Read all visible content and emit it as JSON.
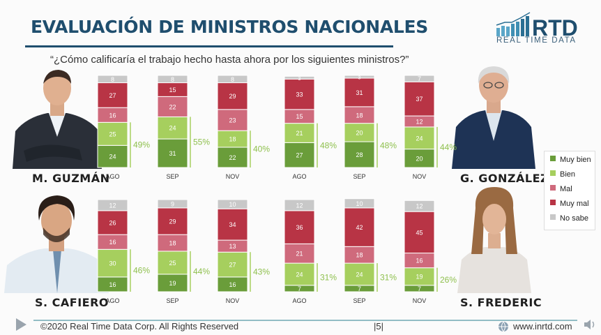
{
  "header": {
    "title": "EVALUACIÓN DE MINISTROS NACIONALES",
    "question": "“¿Cómo calificaría el trabajo hecho hasta ahora por los siguientes ministros?”",
    "logo_mark": "RTD",
    "logo_text": "REAL TIME DATA"
  },
  "ministers": [
    {
      "name": "M. GUZMÁN"
    },
    {
      "name": "G. GONZÁLEZ"
    },
    {
      "name": "S. CAFIERO"
    },
    {
      "name": "S. FREDERIC"
    }
  ],
  "legend": [
    {
      "label": "Muy bien",
      "color": "#6a9d3a"
    },
    {
      "label": "Bien",
      "color": "#a6cf5e"
    },
    {
      "label": "Mal",
      "color": "#cf6a7c"
    },
    {
      "label": "Muy mal",
      "color": "#b83445"
    },
    {
      "label": "No sabe",
      "color": "#c8c8c8"
    }
  ],
  "footer": {
    "copyright": "©2020 Real Time Data Corp. All Rights Reserved",
    "page": "|5|",
    "url": "www.inrtd.com"
  },
  "chart_data": [
    {
      "type": "bar",
      "title": "M. GUZMÁN",
      "categories": [
        "AGO",
        "SEP",
        "NOV"
      ],
      "series": [
        {
          "name": "Muy bien",
          "values": [
            24,
            31,
            22
          ]
        },
        {
          "name": "Bien",
          "values": [
            25,
            24,
            18
          ]
        },
        {
          "name": "Mal",
          "values": [
            16,
            22,
            23
          ]
        },
        {
          "name": "Muy mal",
          "values": [
            27,
            15,
            29
          ]
        },
        {
          "name": "No sabe",
          "values": [
            8,
            8,
            8
          ]
        }
      ],
      "positive_totals": [
        "49%",
        "55%",
        "40%"
      ]
    },
    {
      "type": "bar",
      "title": "G. GONZÁLEZ",
      "categories": [
        "AGO",
        "SEP",
        "NOV"
      ],
      "series": [
        {
          "name": "Muy bien",
          "values": [
            27,
            28,
            20
          ]
        },
        {
          "name": "Bien",
          "values": [
            21,
            20,
            24
          ]
        },
        {
          "name": "Mal",
          "values": [
            15,
            18,
            12
          ]
        },
        {
          "name": "Muy mal",
          "values": [
            33,
            31,
            37
          ]
        },
        {
          "name": "No sabe",
          "values": [
            3,
            3,
            7
          ]
        }
      ],
      "positive_totals": [
        "48%",
        "48%",
        "44%"
      ]
    },
    {
      "type": "bar",
      "title": "S. CAFIERO",
      "categories": [
        "AGO",
        "SEP",
        "NOV"
      ],
      "series": [
        {
          "name": "Muy bien",
          "values": [
            16,
            19,
            16
          ]
        },
        {
          "name": "Bien",
          "values": [
            30,
            25,
            27
          ]
        },
        {
          "name": "Mal",
          "values": [
            16,
            18,
            13
          ]
        },
        {
          "name": "Muy mal",
          "values": [
            26,
            29,
            34
          ]
        },
        {
          "name": "No sabe",
          "values": [
            12,
            9,
            10
          ]
        }
      ],
      "positive_totals": [
        "46%",
        "44%",
        "43%"
      ]
    },
    {
      "type": "bar",
      "title": "S. FREDERIC",
      "categories": [
        "AGO",
        "SEP",
        "NOV"
      ],
      "series": [
        {
          "name": "Muy bien",
          "values": [
            7,
            7,
            7
          ]
        },
        {
          "name": "Bien",
          "values": [
            24,
            24,
            19
          ]
        },
        {
          "name": "Mal",
          "values": [
            21,
            18,
            16
          ]
        },
        {
          "name": "Muy mal",
          "values": [
            36,
            42,
            45
          ]
        },
        {
          "name": "No sabe",
          "values": [
            12,
            10,
            12
          ]
        }
      ],
      "positive_totals": [
        "31%",
        "31%",
        "26%"
      ]
    }
  ]
}
